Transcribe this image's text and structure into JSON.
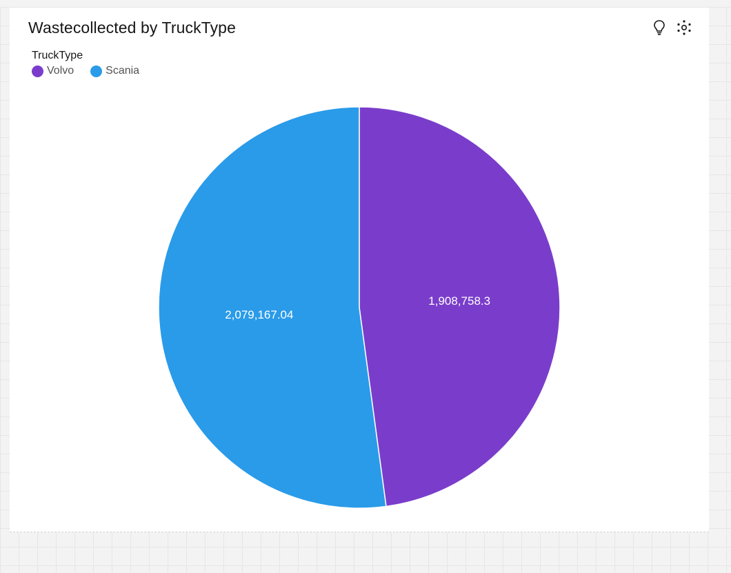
{
  "chart_data": {
    "type": "pie",
    "title": "Wastecollected by TruckType",
    "legend_title": "TruckType",
    "legend_position": "top-left",
    "slices": [
      {
        "label": "Volvo",
        "value": 1908758.3,
        "value_label": "1,908,758.3",
        "color": "#7a3dcb"
      },
      {
        "label": "Scania",
        "value": 2079167.04,
        "value_label": "2,079,167.04",
        "color": "#2a9be9"
      }
    ]
  },
  "toolbar": {
    "insight_icon": "lightbulb-icon",
    "explore_icon": "dots-explore-icon"
  }
}
